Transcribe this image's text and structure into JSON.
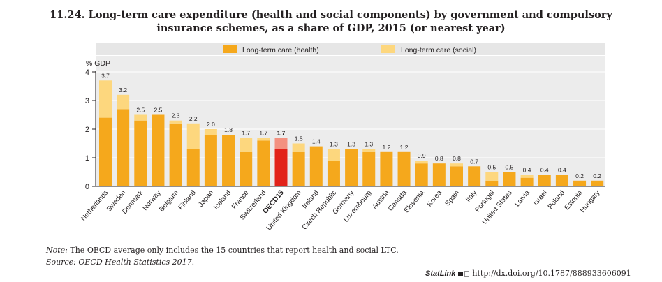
{
  "title_line1": "11.24. Long-term care expenditure (health and social components) by government and compulsory",
  "title_line2": "insurance schemes, as a share of GDP, 2015 (or nearest year)",
  "note_label": "Note:",
  "note_text": " The OECD average only includes the 15 countries that report health and social LTC.",
  "source_text": "Source: OECD Health Statistics 2017.",
  "statlink_label": "StatLink",
  "statlink_url": "http://dx.doi.org/10.1787/888933606091",
  "colors": {
    "health": "#f5a81c",
    "social": "#fdd77e",
    "oecd_health": "#e2231a",
    "oecd_social": "#f39180",
    "legend_bg": "#e6e6e6",
    "plot_bg": "#ececec"
  },
  "chart_data": {
    "type": "bar",
    "stacked": true,
    "title": "11.24. Long-term care expenditure (health and social components) by government and compulsory insurance schemes, as a share of GDP, 2015 (or nearest year)",
    "ylabel": "% GDP",
    "ylim": [
      0,
      4
    ],
    "yticks": [
      0,
      1,
      2,
      3,
      4
    ],
    "legend_position": "top",
    "highlight": "OECD15",
    "categories": [
      "Netherlands",
      "Sweden",
      "Denmark",
      "Norway",
      "Belgium",
      "Finland",
      "Japan",
      "Iceland",
      "France",
      "Switzerland",
      "OECD15",
      "United Kingdom",
      "Ireland",
      "Czech Republic",
      "Germany",
      "Luxembourg",
      "Austria",
      "Canada",
      "Slovenia",
      "Korea",
      "Spain",
      "Italy",
      "Portugal",
      "United States",
      "Latvia",
      "Israel",
      "Poland",
      "Estonia",
      "Hungary"
    ],
    "series": [
      {
        "name": "Long-term care (health)",
        "values": [
          2.4,
          2.7,
          2.3,
          2.5,
          2.2,
          1.3,
          1.8,
          1.8,
          1.2,
          1.6,
          1.3,
          1.2,
          1.4,
          0.9,
          1.3,
          1.2,
          1.2,
          1.2,
          0.8,
          0.8,
          0.7,
          0.7,
          0.2,
          0.5,
          0.3,
          0.4,
          0.4,
          0.2,
          0.2
        ]
      },
      {
        "name": "Long-term care (social)",
        "values": [
          1.3,
          0.5,
          0.2,
          0.0,
          0.1,
          0.9,
          0.2,
          0.0,
          0.5,
          0.1,
          0.4,
          0.3,
          0.0,
          0.4,
          0.0,
          0.1,
          0.0,
          0.0,
          0.1,
          0.0,
          0.1,
          0.0,
          0.3,
          0.0,
          0.1,
          0.0,
          0.0,
          0.0,
          0.0
        ]
      }
    ],
    "totals": [
      "3.7",
      "3.2",
      "2.5",
      "2.5",
      "2.3",
      "2.2",
      "2.0",
      "1.8",
      "1.7",
      "1.7",
      "1.7",
      "1.5",
      "1.4",
      "1.3",
      "1.3",
      "1.3",
      "1.2",
      "1.2",
      "0.9",
      "0.8",
      "0.8",
      "0.7",
      "0.5",
      "0.5",
      "0.4",
      "0.4",
      "0.4",
      "0.2",
      "0.2"
    ]
  }
}
